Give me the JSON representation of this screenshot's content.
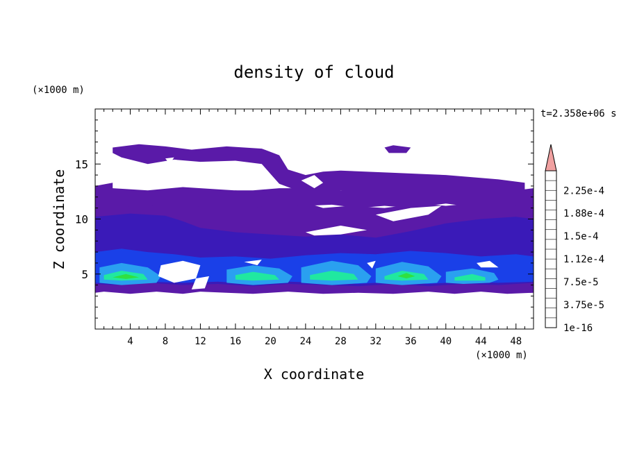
{
  "chart_data": {
    "type": "heatmap",
    "title": "density of cloud",
    "xlabel": "X coordinate",
    "ylabel": "Z coordinate",
    "x_unit": "(×1000 m)",
    "y_unit": "(×1000 m)",
    "time_label": "t=2.358e+06 s",
    "xlim": [
      0,
      50
    ],
    "ylim": [
      0,
      20
    ],
    "x_ticks": [
      "4",
      "8",
      "12",
      "16",
      "20",
      "24",
      "28",
      "32",
      "36",
      "40",
      "44",
      "48"
    ],
    "y_ticks": [
      "5",
      "10",
      "15"
    ],
    "x_tick_values": [
      4,
      8,
      12,
      16,
      20,
      24,
      28,
      32,
      36,
      40,
      44,
      48
    ],
    "y_tick_values": [
      5,
      10,
      15
    ],
    "colorbar": {
      "labels": [
        "1e-16",
        "3.75e-5",
        "7.5e-5",
        "1.12e-4",
        "1.5e-4",
        "1.88e-4",
        "2.25e-4"
      ],
      "levels": [
        1e-16,
        3.75e-05,
        7.5e-05,
        0.000112,
        0.00015,
        0.000188,
        0.000225
      ],
      "colors": [
        "#5a1aa8",
        "#3a1ab8",
        "#2a2ad0",
        "#1a40e8",
        "#2070f0",
        "#2aa0f0",
        "#20d0e0",
        "#20e8a0",
        "#30e040",
        "#a0e020",
        "#f0f020",
        "#f0c010",
        "#f09000",
        "#f06000",
        "#f03000",
        "#e01010"
      ],
      "overflow_color": "#f0a0a0",
      "overflow": "triangle-top"
    },
    "regions": [
      {
        "level": 0,
        "points": [
          [
            0,
            12.5
          ],
          [
            2,
            12.8
          ],
          [
            6,
            12.6
          ],
          [
            10,
            12.9
          ],
          [
            14,
            12.7
          ],
          [
            18,
            12.5
          ],
          [
            21,
            12.3
          ],
          [
            24,
            11.5
          ],
          [
            26,
            11.0
          ],
          [
            29,
            11.2
          ],
          [
            33,
            11.0
          ],
          [
            37,
            11.4
          ],
          [
            40,
            11.2
          ],
          [
            44,
            11.5
          ],
          [
            48,
            11.4
          ],
          [
            50,
            11.6
          ],
          [
            50,
            3.3
          ],
          [
            47,
            3.2
          ],
          [
            44,
            3.4
          ],
          [
            41,
            3.2
          ],
          [
            38,
            3.4
          ],
          [
            34,
            3.2
          ],
          [
            30,
            3.3
          ],
          [
            26,
            3.2
          ],
          [
            22,
            3.4
          ],
          [
            18,
            3.2
          ],
          [
            15,
            3.3
          ],
          [
            12,
            3.4
          ],
          [
            10,
            3.2
          ],
          [
            7,
            3.4
          ],
          [
            4,
            3.2
          ],
          [
            1,
            3.4
          ],
          [
            0,
            3.3
          ]
        ]
      },
      {
        "level": 0,
        "points": [
          [
            2,
            16.5
          ],
          [
            5,
            16.8
          ],
          [
            8,
            16.6
          ],
          [
            11,
            16.3
          ],
          [
            15,
            16.6
          ],
          [
            19,
            16.4
          ],
          [
            21,
            15.8
          ],
          [
            22,
            14.5
          ],
          [
            24,
            14.0
          ],
          [
            26,
            14.3
          ],
          [
            28,
            14.4
          ],
          [
            34,
            14.2
          ],
          [
            40,
            14.0
          ],
          [
            46,
            13.6
          ],
          [
            49,
            13.3
          ],
          [
            49,
            12.6
          ],
          [
            40,
            12.0
          ],
          [
            32,
            12.3
          ],
          [
            28,
            12.6
          ],
          [
            25,
            12.1
          ],
          [
            23,
            12.6
          ],
          [
            21,
            13.2
          ],
          [
            19,
            15.0
          ],
          [
            16,
            15.3
          ],
          [
            12,
            15.2
          ],
          [
            9,
            15.4
          ],
          [
            6,
            15.0
          ],
          [
            3,
            15.6
          ],
          [
            2,
            16.0
          ]
        ]
      },
      {
        "level": 0,
        "points": [
          [
            33,
            16.5
          ],
          [
            34,
            16.7
          ],
          [
            36,
            16.5
          ],
          [
            35.5,
            16.0
          ],
          [
            33.5,
            16.0
          ]
        ]
      },
      {
        "level": 0,
        "points": [
          [
            2,
            13.3
          ],
          [
            0,
            13.0
          ],
          [
            0,
            12.0
          ],
          [
            2,
            12.4
          ],
          [
            6,
            12.4
          ],
          [
            10,
            12.6
          ],
          [
            14,
            12.4
          ],
          [
            16,
            12.6
          ],
          [
            18,
            12.6
          ],
          [
            21,
            12.8
          ],
          [
            24,
            12.8
          ],
          [
            27,
            12.6
          ],
          [
            30,
            12.6
          ],
          [
            33,
            12.4
          ],
          [
            36,
            12.6
          ],
          [
            40,
            12.4
          ],
          [
            44,
            12.8
          ],
          [
            48,
            12.6
          ],
          [
            50,
            12.8
          ],
          [
            50,
            11.0
          ],
          [
            48,
            11.2
          ],
          [
            44,
            11.0
          ],
          [
            40,
            11.4
          ],
          [
            36,
            11.0
          ],
          [
            33,
            11.2
          ],
          [
            30,
            11.0
          ],
          [
            27,
            11.3
          ],
          [
            24,
            11.2
          ],
          [
            21,
            11.4
          ],
          [
            18,
            11.0
          ],
          [
            14,
            11.3
          ],
          [
            10,
            11.0
          ],
          [
            6,
            11.3
          ],
          [
            2,
            11.0
          ]
        ]
      },
      {
        "level": 1,
        "points": [
          [
            0,
            10.2
          ],
          [
            4,
            10.5
          ],
          [
            8,
            10.3
          ],
          [
            10,
            9.8
          ],
          [
            12,
            9.2
          ],
          [
            16,
            8.8
          ],
          [
            20,
            8.6
          ],
          [
            24,
            8.4
          ],
          [
            28,
            8.6
          ],
          [
            32,
            8.3
          ],
          [
            36,
            8.9
          ],
          [
            40,
            9.6
          ],
          [
            44,
            10.0
          ],
          [
            48,
            10.2
          ],
          [
            50,
            10.0
          ],
          [
            50,
            4.2
          ],
          [
            46,
            4.0
          ],
          [
            42,
            4.1
          ],
          [
            38,
            3.9
          ],
          [
            34,
            4.1
          ],
          [
            30,
            3.9
          ],
          [
            26,
            4.0
          ],
          [
            22,
            4.1
          ],
          [
            18,
            3.9
          ],
          [
            14,
            4.1
          ],
          [
            10,
            4.0
          ],
          [
            6,
            4.2
          ],
          [
            2,
            4.0
          ],
          [
            0,
            4.1
          ]
        ]
      },
      {
        "level": 2,
        "points": [
          [
            0,
            7.0
          ],
          [
            3,
            7.3
          ],
          [
            6,
            7.0
          ],
          [
            9,
            6.8
          ],
          [
            12,
            6.5
          ],
          [
            16,
            6.6
          ],
          [
            20,
            6.4
          ],
          [
            24,
            6.7
          ],
          [
            28,
            6.9
          ],
          [
            32,
            6.8
          ],
          [
            36,
            7.1
          ],
          [
            40,
            6.9
          ],
          [
            44,
            6.6
          ],
          [
            48,
            6.8
          ],
          [
            50,
            6.6
          ],
          [
            50,
            4.3
          ],
          [
            46,
            4.2
          ],
          [
            42,
            4.3
          ],
          [
            38,
            4.1
          ],
          [
            34,
            4.3
          ],
          [
            30,
            4.1
          ],
          [
            26,
            4.2
          ],
          [
            22,
            4.3
          ],
          [
            18,
            4.1
          ],
          [
            14,
            4.3
          ],
          [
            10,
            4.2
          ],
          [
            6,
            4.3
          ],
          [
            2,
            4.1
          ],
          [
            0,
            4.2
          ]
        ]
      },
      {
        "level": 3,
        "points": [
          [
            0.5,
            5.6
          ],
          [
            3,
            6.0
          ],
          [
            6,
            5.6
          ],
          [
            7.5,
            4.8
          ],
          [
            7,
            4.2
          ],
          [
            3,
            4.0
          ],
          [
            0.5,
            4.2
          ]
        ]
      },
      {
        "level": 3,
        "points": [
          [
            15,
            5.4
          ],
          [
            18,
            5.8
          ],
          [
            21,
            5.5
          ],
          [
            22.5,
            4.8
          ],
          [
            22,
            4.2
          ],
          [
            18,
            4.0
          ],
          [
            15,
            4.2
          ]
        ]
      },
      {
        "level": 3,
        "points": [
          [
            23.5,
            5.6
          ],
          [
            27,
            6.2
          ],
          [
            30,
            5.8
          ],
          [
            31.5,
            4.8
          ],
          [
            31,
            4.2
          ],
          [
            27,
            4.0
          ],
          [
            23.5,
            4.2
          ]
        ]
      },
      {
        "level": 3,
        "points": [
          [
            32,
            5.5
          ],
          [
            35,
            6.1
          ],
          [
            38,
            5.7
          ],
          [
            39.5,
            4.8
          ],
          [
            39,
            4.2
          ],
          [
            35,
            4.0
          ],
          [
            32,
            4.2
          ]
        ]
      },
      {
        "level": 3,
        "points": [
          [
            40,
            5.2
          ],
          [
            43,
            5.5
          ],
          [
            45.5,
            5.1
          ],
          [
            46,
            4.5
          ],
          [
            45,
            4.2
          ],
          [
            42,
            4.1
          ],
          [
            40,
            4.2
          ]
        ]
      },
      {
        "level": 5,
        "points": [
          [
            1,
            4.9
          ],
          [
            3,
            5.3
          ],
          [
            5.5,
            5.0
          ],
          [
            6,
            4.5
          ],
          [
            3,
            4.4
          ],
          [
            1,
            4.5
          ]
        ]
      },
      {
        "level": 5,
        "points": [
          [
            16,
            4.9
          ],
          [
            18,
            5.2
          ],
          [
            20.5,
            4.9
          ],
          [
            21,
            4.5
          ],
          [
            18,
            4.4
          ],
          [
            16,
            4.5
          ]
        ]
      },
      {
        "level": 5,
        "points": [
          [
            24.5,
            4.9
          ],
          [
            27,
            5.3
          ],
          [
            29.5,
            5.0
          ],
          [
            30,
            4.5
          ],
          [
            27,
            4.4
          ],
          [
            24.5,
            4.5
          ]
        ]
      },
      {
        "level": 5,
        "points": [
          [
            33,
            4.8
          ],
          [
            35,
            5.3
          ],
          [
            37.5,
            5.0
          ],
          [
            38,
            4.5
          ],
          [
            35,
            4.4
          ],
          [
            33,
            4.5
          ]
        ]
      },
      {
        "level": 5,
        "points": [
          [
            41,
            4.7
          ],
          [
            43,
            5.0
          ],
          [
            44.5,
            4.7
          ],
          [
            44.5,
            4.4
          ],
          [
            42,
            4.4
          ],
          [
            41,
            4.4
          ]
        ]
      },
      {
        "level": 6,
        "points": [
          [
            2,
            4.7
          ],
          [
            3.5,
            5.0
          ],
          [
            5,
            4.7
          ],
          [
            3.5,
            4.55
          ]
        ]
      },
      {
        "level": 6,
        "points": [
          [
            34.5,
            4.8
          ],
          [
            35.5,
            5.1
          ],
          [
            36.5,
            4.8
          ],
          [
            35.5,
            4.6
          ]
        ]
      }
    ],
    "gaps": [
      [
        [
          7.5,
          5.8
        ],
        [
          10,
          6.2
        ],
        [
          12,
          5.8
        ],
        [
          11.5,
          4.6
        ],
        [
          9,
          4.2
        ],
        [
          7.2,
          4.8
        ]
      ],
      [
        [
          11.5,
          4.6
        ],
        [
          13,
          4.8
        ],
        [
          12.5,
          3.7
        ],
        [
          11,
          3.6
        ]
      ],
      [
        [
          23.5,
          13.5
        ],
        [
          25,
          14.0
        ],
        [
          26,
          13.3
        ],
        [
          25,
          12.8
        ]
      ],
      [
        [
          8,
          15.5
        ],
        [
          9,
          15.6
        ],
        [
          8.5,
          15.0
        ]
      ],
      [
        [
          32,
          10.4
        ],
        [
          36,
          11.0
        ],
        [
          39.5,
          11.2
        ],
        [
          38,
          10.4
        ],
        [
          34,
          9.8
        ]
      ],
      [
        [
          24,
          8.8
        ],
        [
          28,
          9.4
        ],
        [
          31,
          9.0
        ],
        [
          28,
          8.6
        ],
        [
          25,
          8.5
        ]
      ],
      [
        [
          43.5,
          6.0
        ],
        [
          45,
          6.2
        ],
        [
          46,
          5.6
        ],
        [
          44,
          5.6
        ]
      ],
      [
        [
          17,
          6.1
        ],
        [
          19,
          6.3
        ],
        [
          18.5,
          5.8
        ]
      ],
      [
        [
          31,
          6.0
        ],
        [
          32,
          6.2
        ],
        [
          31.6,
          5.5
        ]
      ]
    ]
  }
}
